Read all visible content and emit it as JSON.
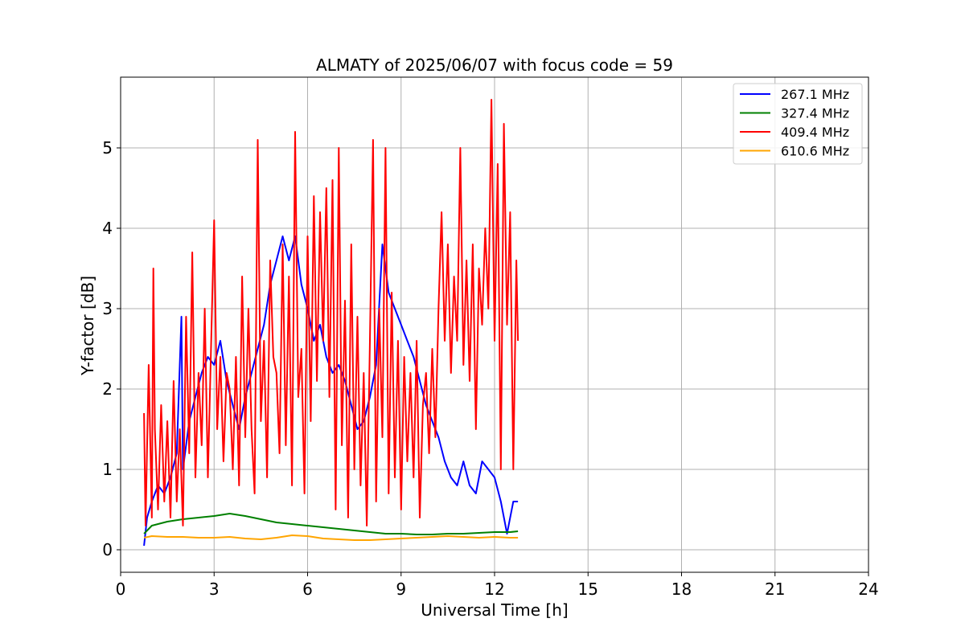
{
  "chart_data": {
    "type": "line",
    "title": "ALMATY of 2025/06/07 with focus code = 59",
    "xlabel": "Universal Time [h]",
    "ylabel": "Y-factor [dB]",
    "xlim": [
      0,
      24
    ],
    "ylim": [
      -0.28,
      5.88
    ],
    "xticks": [
      0,
      3,
      6,
      9,
      12,
      15,
      18,
      21,
      24
    ],
    "yticks": [
      0,
      1,
      2,
      3,
      4,
      5
    ],
    "grid": true,
    "legend_position": "top-right",
    "series": [
      {
        "name": "267.1 MHz",
        "color": "#0000ff",
        "x": [
          0.75,
          0.85,
          1.0,
          1.2,
          1.4,
          1.6,
          1.8,
          1.95,
          2.0,
          2.2,
          2.4,
          2.6,
          2.8,
          3.0,
          3.2,
          3.4,
          3.6,
          3.8,
          4.0,
          4.2,
          4.4,
          4.6,
          4.8,
          5.0,
          5.2,
          5.4,
          5.6,
          5.8,
          6.0,
          6.2,
          6.4,
          6.6,
          6.8,
          7.0,
          7.2,
          7.4,
          7.6,
          7.8,
          8.0,
          8.2,
          8.4,
          8.6,
          8.8,
          9.0,
          9.2,
          9.4,
          9.6,
          9.8,
          10.0,
          10.2,
          10.4,
          10.6,
          10.8,
          11.0,
          11.2,
          11.4,
          11.6,
          11.8,
          12.0,
          12.2,
          12.4,
          12.6,
          12.75
        ],
        "y": [
          0.05,
          0.4,
          0.6,
          0.8,
          0.7,
          0.9,
          1.2,
          2.9,
          1.0,
          1.6,
          1.9,
          2.2,
          2.4,
          2.3,
          2.6,
          2.1,
          1.8,
          1.5,
          1.9,
          2.2,
          2.5,
          2.8,
          3.3,
          3.6,
          3.9,
          3.6,
          3.9,
          3.3,
          3.0,
          2.6,
          2.8,
          2.4,
          2.2,
          2.3,
          2.1,
          1.8,
          1.5,
          1.6,
          1.9,
          2.3,
          3.8,
          3.2,
          3.0,
          2.8,
          2.6,
          2.4,
          2.1,
          1.8,
          1.6,
          1.4,
          1.1,
          0.9,
          0.8,
          1.1,
          0.8,
          0.7,
          1.1,
          1.0,
          0.9,
          0.6,
          0.2,
          0.6,
          0.6
        ]
      },
      {
        "name": "327.4 MHz",
        "color": "#008000",
        "x": [
          0.75,
          1.0,
          1.5,
          2.0,
          2.5,
          3.0,
          3.5,
          4.0,
          4.5,
          5.0,
          5.5,
          6.0,
          6.5,
          7.0,
          7.5,
          8.0,
          8.5,
          9.0,
          9.5,
          10.0,
          10.5,
          11.0,
          11.5,
          12.0,
          12.5,
          12.75
        ],
        "y": [
          0.2,
          0.3,
          0.35,
          0.38,
          0.4,
          0.42,
          0.45,
          0.42,
          0.38,
          0.34,
          0.32,
          0.3,
          0.28,
          0.26,
          0.24,
          0.22,
          0.2,
          0.2,
          0.19,
          0.19,
          0.2,
          0.2,
          0.21,
          0.22,
          0.22,
          0.23
        ]
      },
      {
        "name": "409.4 MHz",
        "color": "#ff0000",
        "x": [
          0.75,
          0.8,
          0.9,
          1.0,
          1.05,
          1.1,
          1.2,
          1.3,
          1.4,
          1.5,
          1.6,
          1.7,
          1.8,
          1.9,
          2.0,
          2.1,
          2.2,
          2.3,
          2.4,
          2.5,
          2.6,
          2.7,
          2.8,
          2.9,
          3.0,
          3.1,
          3.2,
          3.3,
          3.4,
          3.5,
          3.6,
          3.7,
          3.8,
          3.9,
          4.0,
          4.1,
          4.2,
          4.3,
          4.4,
          4.5,
          4.6,
          4.7,
          4.8,
          4.9,
          5.0,
          5.1,
          5.2,
          5.3,
          5.4,
          5.5,
          5.6,
          5.7,
          5.8,
          5.9,
          6.0,
          6.1,
          6.2,
          6.3,
          6.4,
          6.5,
          6.6,
          6.7,
          6.8,
          6.9,
          7.0,
          7.1,
          7.2,
          7.3,
          7.4,
          7.5,
          7.6,
          7.7,
          7.8,
          7.9,
          8.0,
          8.1,
          8.2,
          8.3,
          8.4,
          8.5,
          8.6,
          8.7,
          8.8,
          8.9,
          9.0,
          9.1,
          9.2,
          9.3,
          9.4,
          9.5,
          9.6,
          9.7,
          9.8,
          9.9,
          10.0,
          10.1,
          10.2,
          10.3,
          10.4,
          10.5,
          10.6,
          10.7,
          10.8,
          10.9,
          11.0,
          11.1,
          11.2,
          11.3,
          11.4,
          11.5,
          11.6,
          11.7,
          11.8,
          11.9,
          12.0,
          12.1,
          12.2,
          12.3,
          12.4,
          12.5,
          12.6,
          12.7,
          12.75
        ],
        "y": [
          1.7,
          0.3,
          2.3,
          0.4,
          3.5,
          1.5,
          0.5,
          1.8,
          0.6,
          1.6,
          0.4,
          2.1,
          0.6,
          1.5,
          0.3,
          2.9,
          1.2,
          3.7,
          0.9,
          2.2,
          1.3,
          3.0,
          0.9,
          2.5,
          4.1,
          1.5,
          2.4,
          1.1,
          2.2,
          2.0,
          1.0,
          2.4,
          0.8,
          3.4,
          1.4,
          3.0,
          1.5,
          0.7,
          5.1,
          1.6,
          2.6,
          0.9,
          3.6,
          2.4,
          2.2,
          1.2,
          3.8,
          1.3,
          3.4,
          0.8,
          5.2,
          1.9,
          2.5,
          0.7,
          3.9,
          1.6,
          4.4,
          2.1,
          4.2,
          2.6,
          4.5,
          1.9,
          4.6,
          0.5,
          5.0,
          1.3,
          3.1,
          0.4,
          3.8,
          1.0,
          2.9,
          0.8,
          2.2,
          0.3,
          2.6,
          5.1,
          0.6,
          3.0,
          1.4,
          5.0,
          0.7,
          3.2,
          0.9,
          2.6,
          0.5,
          2.4,
          1.1,
          2.2,
          0.9,
          2.6,
          0.4,
          1.8,
          2.2,
          1.2,
          2.5,
          1.4,
          3.0,
          4.2,
          2.6,
          3.8,
          2.2,
          3.4,
          2.6,
          5.0,
          2.3,
          3.6,
          2.1,
          3.8,
          1.5,
          3.5,
          2.8,
          4.0,
          3.0,
          5.6,
          2.6,
          4.8,
          1.0,
          5.3,
          2.8,
          4.2,
          1.0,
          3.6,
          2.6
        ]
      },
      {
        "name": "610.6 MHz",
        "color": "#ffa500",
        "x": [
          0.75,
          1.0,
          1.5,
          2.0,
          2.5,
          3.0,
          3.5,
          4.0,
          4.5,
          5.0,
          5.5,
          6.0,
          6.5,
          7.0,
          7.5,
          8.0,
          8.5,
          9.0,
          9.5,
          10.0,
          10.5,
          11.0,
          11.5,
          12.0,
          12.5,
          12.75
        ],
        "y": [
          0.15,
          0.17,
          0.16,
          0.16,
          0.15,
          0.15,
          0.16,
          0.14,
          0.13,
          0.15,
          0.18,
          0.17,
          0.14,
          0.13,
          0.12,
          0.12,
          0.13,
          0.14,
          0.15,
          0.16,
          0.17,
          0.16,
          0.15,
          0.16,
          0.15,
          0.15
        ]
      }
    ]
  }
}
